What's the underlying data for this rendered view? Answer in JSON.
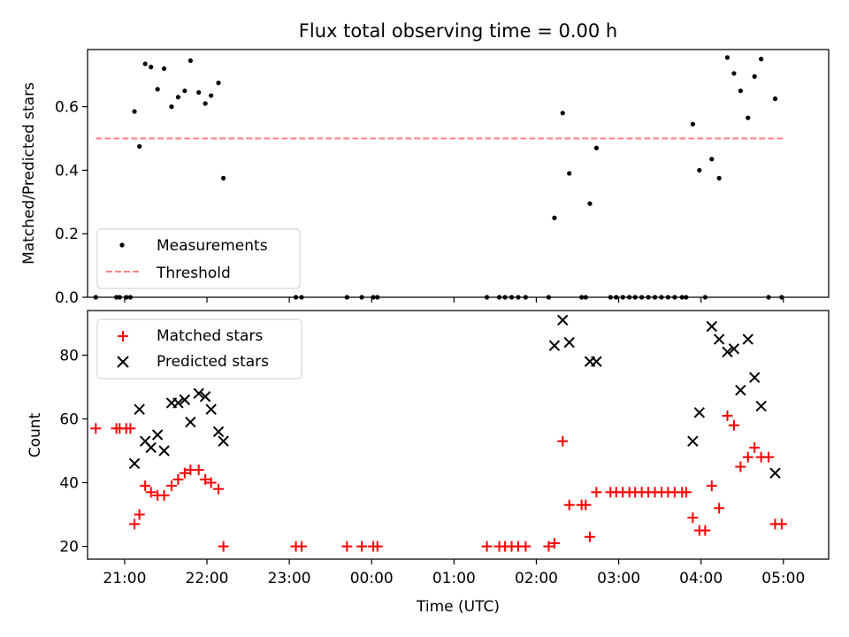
{
  "chart_data": [
    {
      "type": "scatter",
      "title": "Flux total observing time = 0.00 h",
      "ylabel": "Matched/Predicted stars",
      "ylim": [
        0,
        0.78
      ],
      "xlim_hours": [
        -3.45,
        5.55
      ],
      "yticks": [
        0,
        0.2,
        0.4,
        0.6
      ],
      "ytick_labels": [
        "0.0",
        "0.2",
        "0.4",
        "0.6"
      ],
      "legend": {
        "placement": "lower-left",
        "entries": [
          "Measurements",
          "Threshold"
        ]
      },
      "colors": {
        "measurements": "#000000",
        "threshold": "#ff7f7f"
      },
      "threshold": {
        "name": "Threshold",
        "value": 0.5,
        "x_start": -3.35,
        "x_end": 5.0
      },
      "series": [
        {
          "name": "Measurements",
          "points": [
            [
              -3.35,
              0.0
            ],
            [
              -3.1,
              0.0
            ],
            [
              -3.06,
              0.0
            ],
            [
              -2.98,
              0.0
            ],
            [
              -2.93,
              0.0
            ],
            [
              -2.88,
              0.585
            ],
            [
              -2.82,
              0.475
            ],
            [
              -2.75,
              0.735
            ],
            [
              -2.68,
              0.725
            ],
            [
              -2.6,
              0.655
            ],
            [
              -2.52,
              0.72
            ],
            [
              -2.43,
              0.6
            ],
            [
              -2.35,
              0.63
            ],
            [
              -2.27,
              0.65
            ],
            [
              -2.2,
              0.745
            ],
            [
              -2.1,
              0.645
            ],
            [
              -2.02,
              0.61
            ],
            [
              -1.95,
              0.635
            ],
            [
              -1.86,
              0.675
            ],
            [
              -1.8,
              0.375
            ],
            [
              -0.92,
              0.0
            ],
            [
              -0.85,
              0.0
            ],
            [
              -0.3,
              0.0
            ],
            [
              -0.12,
              0.0
            ],
            [
              0.02,
              0.0
            ],
            [
              0.07,
              0.0
            ],
            [
              1.4,
              0.0
            ],
            [
              1.55,
              0.0
            ],
            [
              1.62,
              0.0
            ],
            [
              1.7,
              0.0
            ],
            [
              1.78,
              0.0
            ],
            [
              1.87,
              0.0
            ],
            [
              2.15,
              0.0
            ],
            [
              2.22,
              0.25
            ],
            [
              2.32,
              0.58
            ],
            [
              2.4,
              0.39
            ],
            [
              2.55,
              0.0
            ],
            [
              2.6,
              0.0
            ],
            [
              2.65,
              0.295
            ],
            [
              2.73,
              0.47
            ],
            [
              2.9,
              0.0
            ],
            [
              2.97,
              0.0
            ],
            [
              3.05,
              0.0
            ],
            [
              3.13,
              0.0
            ],
            [
              3.2,
              0.0
            ],
            [
              3.28,
              0.0
            ],
            [
              3.36,
              0.0
            ],
            [
              3.44,
              0.0
            ],
            [
              3.52,
              0.0
            ],
            [
              3.6,
              0.0
            ],
            [
              3.68,
              0.0
            ],
            [
              3.77,
              0.0
            ],
            [
              3.82,
              0.0
            ],
            [
              3.9,
              0.545
            ],
            [
              3.98,
              0.4
            ],
            [
              4.05,
              0.0
            ],
            [
              4.13,
              0.435
            ],
            [
              4.22,
              0.375
            ],
            [
              4.32,
              0.755
            ],
            [
              4.4,
              0.705
            ],
            [
              4.48,
              0.65
            ],
            [
              4.57,
              0.565
            ],
            [
              4.65,
              0.695
            ],
            [
              4.73,
              0.75
            ],
            [
              4.82,
              0.0
            ],
            [
              4.9,
              0.625
            ],
            [
              4.98,
              0.0
            ]
          ]
        }
      ]
    },
    {
      "type": "scatter",
      "title": "",
      "xlabel": "Time (UTC)",
      "ylabel": "Count",
      "ylim": [
        16,
        94
      ],
      "xlim_hours": [
        -3.45,
        5.55
      ],
      "yticks": [
        20,
        40,
        60,
        80
      ],
      "ytick_labels": [
        "20",
        "40",
        "60",
        "80"
      ],
      "xticks_hours": [
        -3,
        -2,
        -1,
        0,
        1,
        2,
        3,
        4,
        5
      ],
      "xtick_labels": [
        "21:00",
        "22:00",
        "23:00",
        "00:00",
        "01:00",
        "02:00",
        "03:00",
        "04:00",
        "05:00"
      ],
      "legend": {
        "placement": "upper-left",
        "entries": [
          "Matched stars",
          "Predicted stars"
        ]
      },
      "colors": {
        "matched": "#ff0000",
        "predicted": "#000000"
      },
      "series": [
        {
          "name": "Matched stars",
          "points": [
            [
              -3.35,
              57
            ],
            [
              -3.1,
              57
            ],
            [
              -3.06,
              57
            ],
            [
              -2.98,
              57
            ],
            [
              -2.93,
              57
            ],
            [
              -2.88,
              27
            ],
            [
              -2.82,
              30
            ],
            [
              -2.75,
              39
            ],
            [
              -2.68,
              37
            ],
            [
              -2.6,
              36
            ],
            [
              -2.52,
              36
            ],
            [
              -2.43,
              39
            ],
            [
              -2.35,
              41
            ],
            [
              -2.27,
              43
            ],
            [
              -2.2,
              44
            ],
            [
              -2.1,
              44
            ],
            [
              -2.02,
              41
            ],
            [
              -1.95,
              40
            ],
            [
              -1.86,
              38
            ],
            [
              -1.8,
              20
            ],
            [
              -0.92,
              20
            ],
            [
              -0.85,
              20
            ],
            [
              -0.3,
              20
            ],
            [
              -0.12,
              20
            ],
            [
              0.02,
              20
            ],
            [
              0.07,
              20
            ],
            [
              1.4,
              20
            ],
            [
              1.55,
              20
            ],
            [
              1.62,
              20
            ],
            [
              1.7,
              20
            ],
            [
              1.78,
              20
            ],
            [
              1.87,
              20
            ],
            [
              2.15,
              20
            ],
            [
              2.22,
              21
            ],
            [
              2.32,
              53
            ],
            [
              2.4,
              33
            ],
            [
              2.55,
              33
            ],
            [
              2.6,
              33
            ],
            [
              2.65,
              23
            ],
            [
              2.73,
              37
            ],
            [
              2.9,
              37
            ],
            [
              2.97,
              37
            ],
            [
              3.05,
              37
            ],
            [
              3.13,
              37
            ],
            [
              3.2,
              37
            ],
            [
              3.28,
              37
            ],
            [
              3.36,
              37
            ],
            [
              3.44,
              37
            ],
            [
              3.52,
              37
            ],
            [
              3.6,
              37
            ],
            [
              3.68,
              37
            ],
            [
              3.77,
              37
            ],
            [
              3.82,
              37
            ],
            [
              3.9,
              29
            ],
            [
              3.98,
              25
            ],
            [
              4.05,
              25
            ],
            [
              4.13,
              39
            ],
            [
              4.22,
              32
            ],
            [
              4.32,
              61
            ],
            [
              4.4,
              58
            ],
            [
              4.48,
              45
            ],
            [
              4.57,
              48
            ],
            [
              4.65,
              51
            ],
            [
              4.73,
              48
            ],
            [
              4.82,
              48
            ],
            [
              4.9,
              27
            ],
            [
              4.98,
              27
            ]
          ]
        },
        {
          "name": "Predicted stars",
          "points": [
            [
              -2.88,
              46
            ],
            [
              -2.82,
              63
            ],
            [
              -2.75,
              53
            ],
            [
              -2.68,
              51
            ],
            [
              -2.6,
              55
            ],
            [
              -2.52,
              50
            ],
            [
              -2.43,
              65
            ],
            [
              -2.35,
              65
            ],
            [
              -2.27,
              66
            ],
            [
              -2.2,
              59
            ],
            [
              -2.1,
              68
            ],
            [
              -2.02,
              67
            ],
            [
              -1.95,
              63
            ],
            [
              -1.86,
              56
            ],
            [
              -1.8,
              53
            ],
            [
              2.22,
              83
            ],
            [
              2.32,
              91
            ],
            [
              2.4,
              84
            ],
            [
              2.65,
              78
            ],
            [
              2.73,
              78
            ],
            [
              3.9,
              53
            ],
            [
              3.98,
              62
            ],
            [
              4.13,
              89
            ],
            [
              4.22,
              85
            ],
            [
              4.32,
              81
            ],
            [
              4.4,
              82
            ],
            [
              4.48,
              69
            ],
            [
              4.57,
              85
            ],
            [
              4.65,
              73
            ],
            [
              4.73,
              64
            ],
            [
              4.9,
              43
            ]
          ]
        }
      ]
    }
  ]
}
